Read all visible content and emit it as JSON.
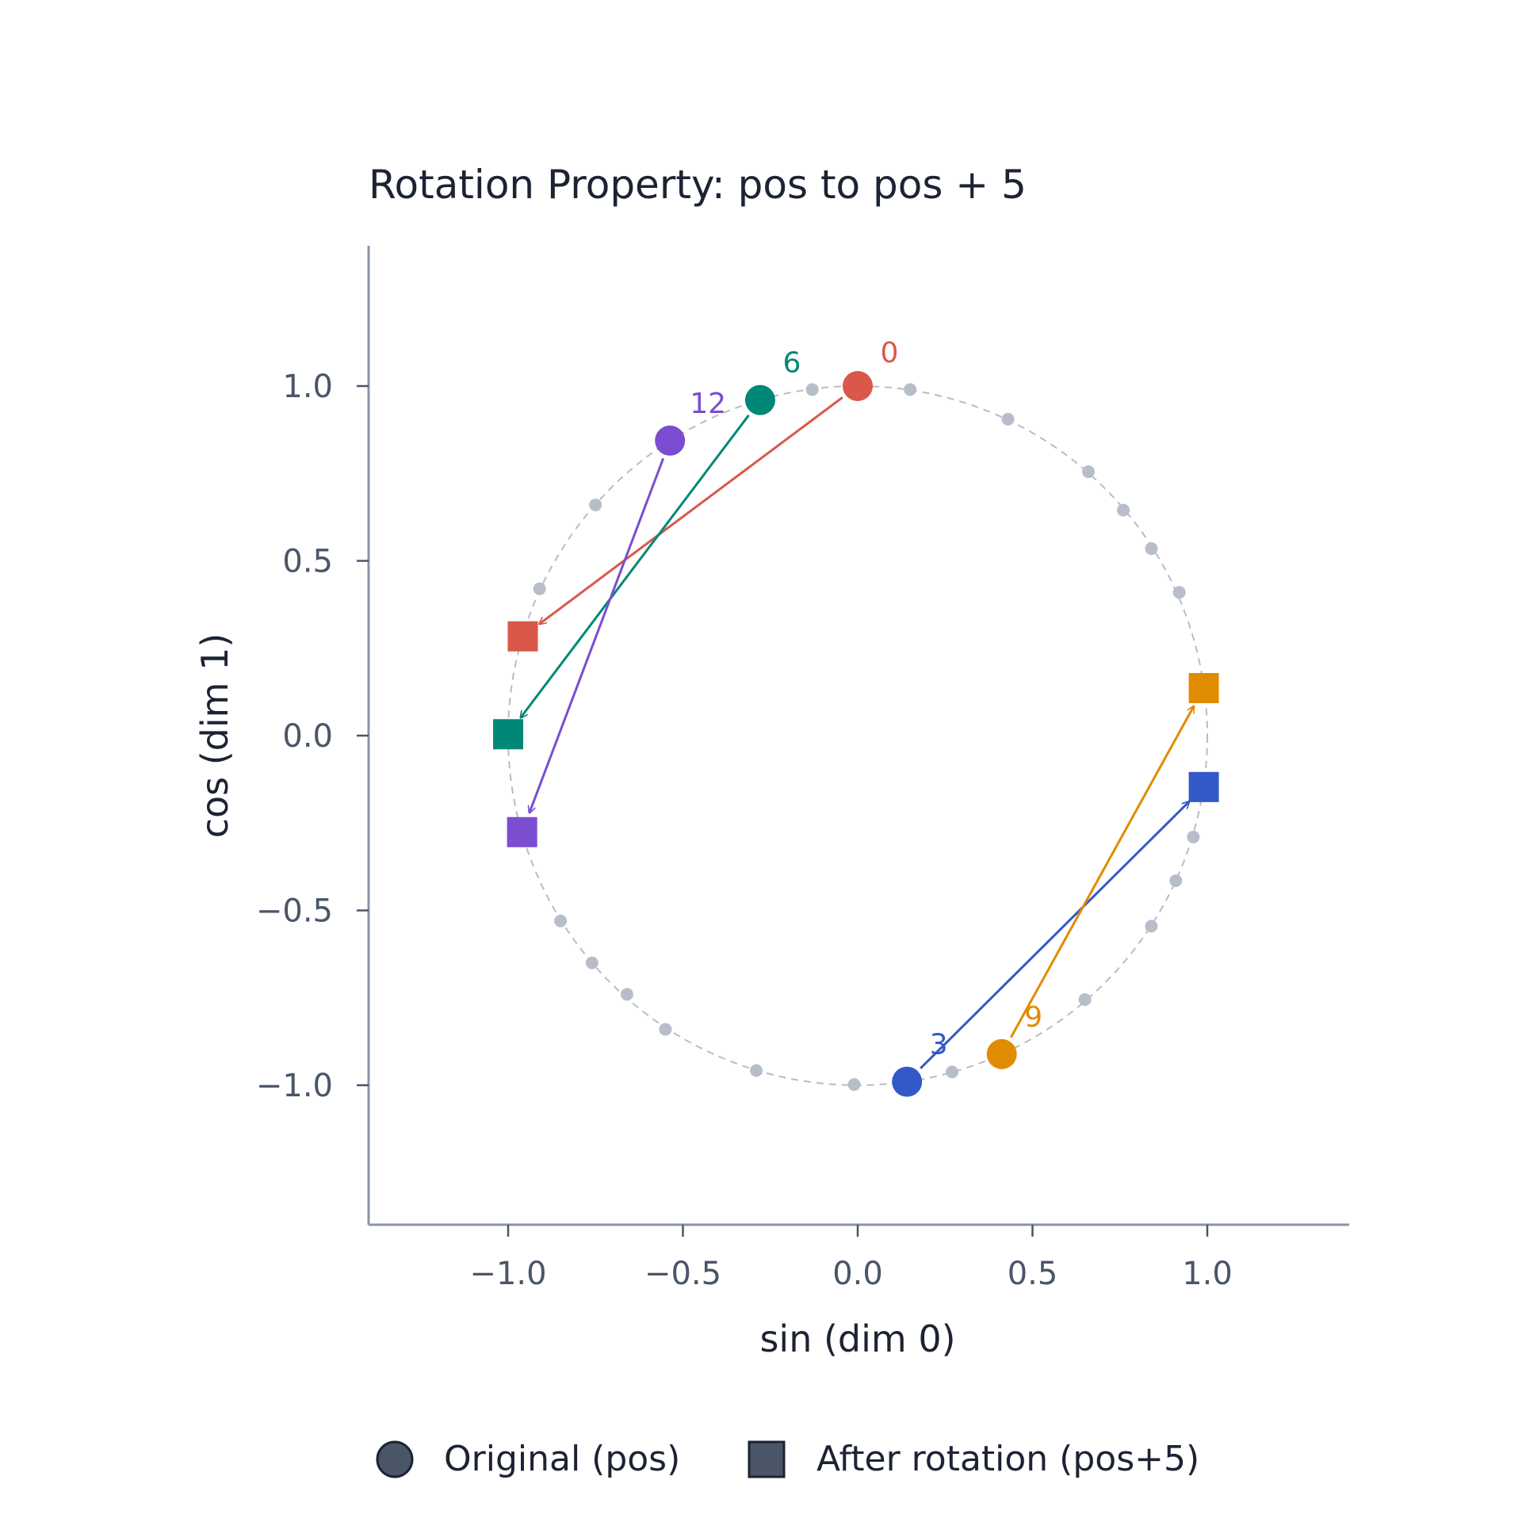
{
  "chart_data": {
    "type": "scatter",
    "title": "Rotation Property: pos to pos + 5",
    "xlabel": "sin (dim 0)",
    "ylabel": "cos (dim 1)",
    "xlim": [
      -1.4,
      1.4
    ],
    "ylim": [
      -1.4,
      1.4
    ],
    "xticks": [
      -1.0,
      -0.5,
      0.0,
      0.5,
      1.0
    ],
    "yticks": [
      -1.0,
      -0.5,
      0.0,
      0.5,
      1.0
    ],
    "xtick_labels": [
      "−1.0",
      "−0.5",
      "0.0",
      "0.5",
      "1.0"
    ],
    "ytick_labels": [
      "−1.0",
      "−0.5",
      "0.0",
      "0.5",
      "1.0"
    ],
    "aspect": "equal",
    "grid": false,
    "reference_circle": {
      "radius": 1.0,
      "style": "dashed",
      "color": "#b8bcc4"
    },
    "background_points": {
      "color": "#b8bec9",
      "points": [
        [
          0.15,
          0.99
        ],
        [
          0.43,
          0.905
        ],
        [
          0.66,
          0.755
        ],
        [
          0.76,
          0.645
        ],
        [
          0.84,
          0.535
        ],
        [
          0.92,
          0.41
        ],
        [
          0.96,
          -0.29
        ],
        [
          0.91,
          -0.415
        ],
        [
          0.84,
          -0.545
        ],
        [
          0.65,
          -0.755
        ],
        [
          0.27,
          -0.962
        ],
        [
          -0.01,
          -0.998
        ],
        [
          -0.29,
          -0.958
        ],
        [
          -0.55,
          -0.84
        ],
        [
          -0.66,
          -0.74
        ],
        [
          -0.76,
          -0.65
        ],
        [
          -0.85,
          -0.53
        ],
        [
          -0.91,
          0.42
        ],
        [
          -0.75,
          0.66
        ],
        [
          -0.13,
          0.99
        ]
      ]
    },
    "series": [
      {
        "label": "0",
        "color": "#d9584a",
        "original": [
          0.0,
          1.0
        ],
        "rotated": [
          -0.958,
          0.284
        ]
      },
      {
        "label": "3",
        "color": "#3358c7",
        "original": [
          0.141,
          -0.99
        ],
        "rotated": [
          0.99,
          -0.147
        ]
      },
      {
        "label": "6",
        "color": "#008876",
        "original": [
          -0.279,
          0.96
        ],
        "rotated": [
          -1.0,
          0.004
        ]
      },
      {
        "label": "9",
        "color": "#e08c00",
        "original": [
          0.412,
          -0.911
        ],
        "rotated": [
          0.99,
          0.136
        ]
      },
      {
        "label": "12",
        "color": "#7b4dd1",
        "original": [
          -0.537,
          0.844
        ],
        "rotated": [
          -0.96,
          -0.276
        ]
      }
    ],
    "legend": {
      "position": "bottom-center",
      "color": "#4a5568",
      "entries": [
        {
          "marker": "circle",
          "label": "Original (pos)"
        },
        {
          "marker": "square",
          "label": "After rotation (pos+5)"
        }
      ]
    }
  }
}
